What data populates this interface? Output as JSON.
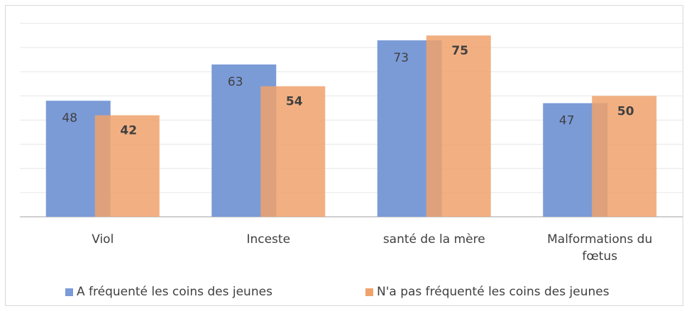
{
  "chart_data": {
    "type": "bar",
    "categories": [
      "Viol",
      "Inceste",
      "santé de la mère",
      "Malformations du fœtus"
    ],
    "series": [
      {
        "name": "A fréquenté les coins des jeunes",
        "color": "#7b9bd7",
        "values": [
          48,
          63,
          73,
          47
        ]
      },
      {
        "name": "N'a pas fréquenté les coins des jeunes",
        "color": "#f0a26c",
        "values": [
          42,
          54,
          75,
          50
        ]
      }
    ],
    "ylim": [
      0,
      80
    ],
    "yticks": [
      0,
      10,
      20,
      30,
      40,
      50,
      60,
      70,
      80
    ],
    "grid": true,
    "legend": "bottom"
  }
}
